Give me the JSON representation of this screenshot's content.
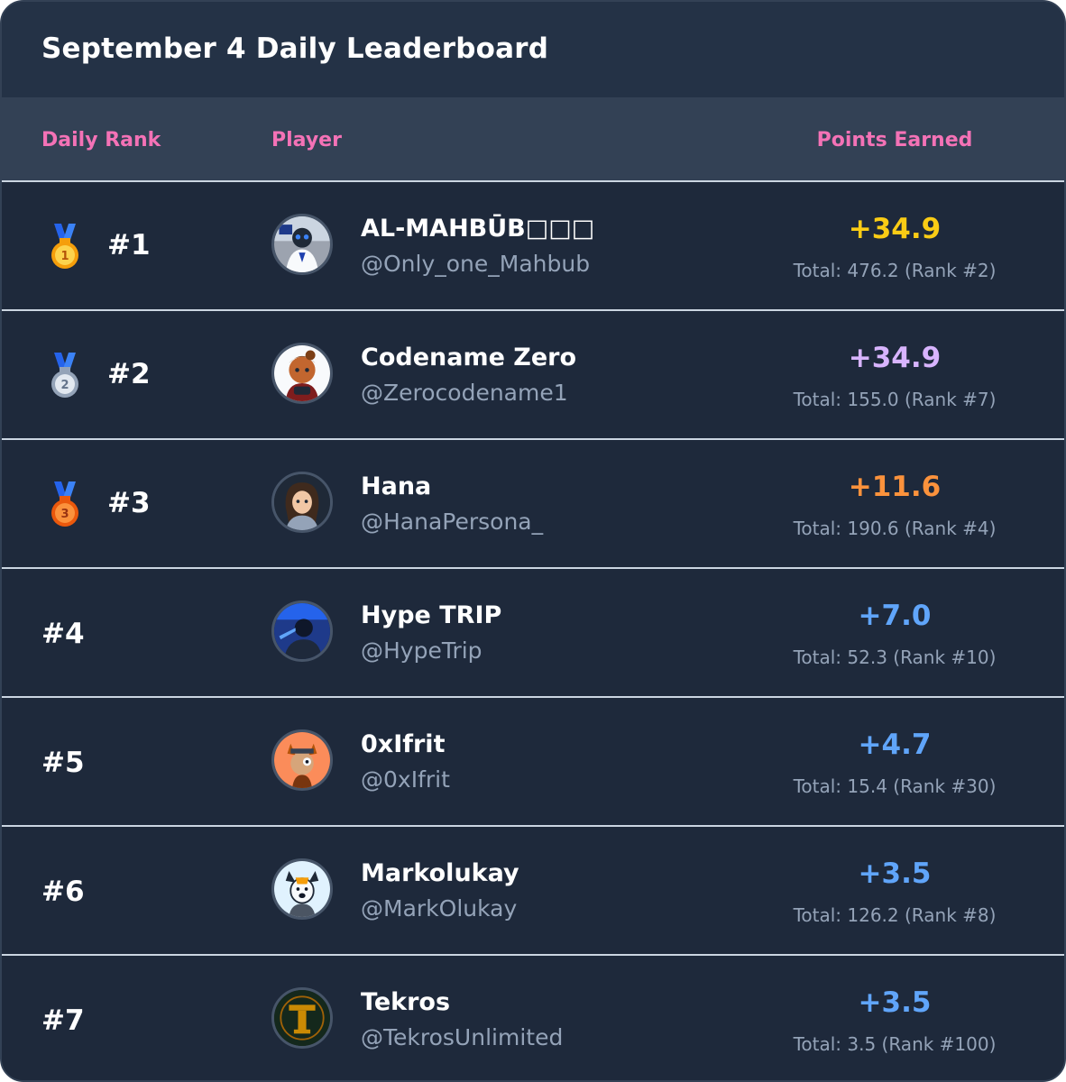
{
  "title": "September 4 Daily Leaderboard",
  "headers": {
    "rank": "Daily Rank",
    "player": "Player",
    "points": "Points Earned"
  },
  "colors": {
    "header_text": "#f472b6",
    "gold": "#facc15",
    "purple": "#d8b4fe",
    "orange": "#fb923c",
    "blue": "#60a5fa"
  },
  "rows": [
    {
      "rank": "#1",
      "medal": "gold-medal-icon",
      "name": "AL-MAHBŪB□□□",
      "handle": "@Only_one_Mahbub",
      "points": "+34.9",
      "total": "Total: 476.2 (Rank #2)",
      "points_color": "#facc15"
    },
    {
      "rank": "#2",
      "medal": "silver-medal-icon",
      "name": "Codename Zero",
      "handle": "@Zerocodename1",
      "points": "+34.9",
      "total": "Total: 155.0 (Rank #7)",
      "points_color": "#d8b4fe"
    },
    {
      "rank": "#3",
      "medal": "bronze-medal-icon",
      "name": "Hana",
      "handle": "@HanaPersona_",
      "points": "+11.6",
      "total": "Total: 190.6 (Rank #4)",
      "points_color": "#fb923c"
    },
    {
      "rank": "#4",
      "name": "Hype TRIP",
      "handle": "@HypeTrip",
      "points": "+7.0",
      "total": "Total: 52.3 (Rank #10)",
      "points_color": "#60a5fa"
    },
    {
      "rank": "#5",
      "name": "0xIfrit",
      "handle": "@0xIfrit",
      "points": "+4.7",
      "total": "Total: 15.4 (Rank #30)",
      "points_color": "#60a5fa"
    },
    {
      "rank": "#6",
      "name": "Markolukay",
      "handle": "@MarkOlukay",
      "points": "+3.5",
      "total": "Total: 126.2 (Rank #8)",
      "points_color": "#60a5fa"
    },
    {
      "rank": "#7",
      "name": "Tekros",
      "handle": "@TekrosUnlimited",
      "points": "+3.5",
      "total": "Total: 3.5 (Rank #100)",
      "points_color": "#60a5fa"
    }
  ]
}
